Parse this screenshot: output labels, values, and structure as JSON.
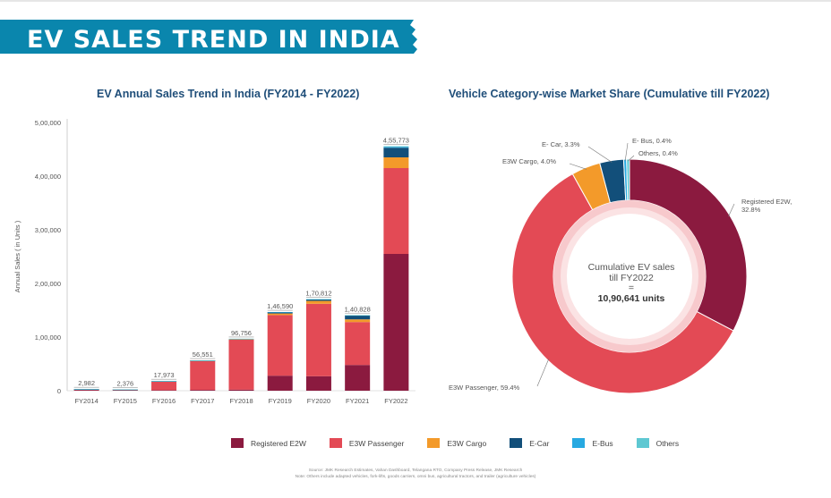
{
  "page": {
    "title": "EV SALES TREND IN INDIA",
    "banner_color": "#0a86ad",
    "source_note": "Source: JMK Research Estimates, Vahan Dashboard, Telangana RTO, Company Press Release, JMK Research",
    "note": "Note: Others include adapted vehicles, fork-lifts, goods carriers, omni bus, agricultural tractors, and trailer (agriculture vehicles)"
  },
  "colors": {
    "Registered E2W": "#8b1a3f",
    "E3W Passenger": "#e34a55",
    "E3W Cargo": "#f39a2a",
    "E-Car": "#124f7a",
    "E-Bus": "#27a9e1",
    "Others": "#5ec8d2"
  },
  "legend": [
    "Registered E2W",
    "E3W Passenger",
    "E3W Cargo",
    "E-Car",
    "E-Bus",
    "Others"
  ],
  "chart_data": [
    {
      "type": "bar",
      "stacked": true,
      "title": "EV Annual Sales Trend in India (FY2014 - FY2022)",
      "ylabel": "Annual Sales ( in Units )",
      "xlabel": "",
      "ylim": [
        0,
        500000
      ],
      "yticks": [
        0,
        100000,
        200000,
        300000,
        400000,
        500000
      ],
      "ytick_labels": [
        "0",
        "1,00,000",
        "2,00,000",
        "3,00,000",
        "4,00,000",
        "5,00,000"
      ],
      "categories": [
        "FY2014",
        "FY2015",
        "FY2016",
        "FY2017",
        "FY2018",
        "FY2019",
        "FY2020",
        "FY2021",
        "FY2022"
      ],
      "totals": [
        2982,
        2376,
        17973,
        56551,
        96756,
        146590,
        170812,
        140828,
        455773
      ],
      "total_labels": [
        "2,982",
        "2,376",
        "17,973",
        "56,551",
        "96,756",
        "1,46,590",
        "1,70,812",
        "1,40,828",
        "4,55,773"
      ],
      "series": [
        {
          "name": "Registered E2W",
          "values": [
            1500,
            1300,
            1000,
            1500,
            2000,
            28000,
            27000,
            48000,
            255000
          ]
        },
        {
          "name": "E3W Passenger",
          "values": [
            1200,
            900,
            16500,
            54000,
            93500,
            113000,
            135000,
            80000,
            160000
          ]
        },
        {
          "name": "E3W Cargo",
          "values": [
            100,
            80,
            200,
            500,
            600,
            3000,
            5500,
            5000,
            20000
          ]
        },
        {
          "name": "E-Car",
          "values": [
            150,
            80,
            250,
            500,
            600,
            2500,
            3000,
            7000,
            18000
          ]
        },
        {
          "name": "E-Bus",
          "values": [
            20,
            10,
            20,
            50,
            50,
            90,
            200,
            800,
            1500
          ]
        },
        {
          "name": "Others",
          "values": [
            12,
            6,
            3,
            1,
            6,
            0,
            112,
            28,
            1273
          ]
        }
      ],
      "grid": false
    },
    {
      "type": "pie",
      "donut": true,
      "title": "Vehicle Category-wise Market Share (Cumulative till FY2022)",
      "center_label": [
        "Cumulative EV sales",
        "till FY2022",
        "=",
        "10,90,641 units"
      ],
      "slices": [
        {
          "name": "Registered E2W",
          "value": 32.8,
          "label": "Registered E2W,",
          "label2": "32.8%"
        },
        {
          "name": "E3W Passenger",
          "value": 59.4,
          "label": "E3W Passenger, 59.4%"
        },
        {
          "name": "E3W Cargo",
          "value": 4.0,
          "label": "E3W Cargo, 4.0%"
        },
        {
          "name": "E-Car",
          "value": 3.3,
          "label": "E- Car, 3.3%"
        },
        {
          "name": "E-Bus",
          "value": 0.4,
          "label": "E- Bus, 0.4%"
        },
        {
          "name": "Others",
          "value": 0.4,
          "label": "Others, 0.4%"
        }
      ]
    }
  ]
}
